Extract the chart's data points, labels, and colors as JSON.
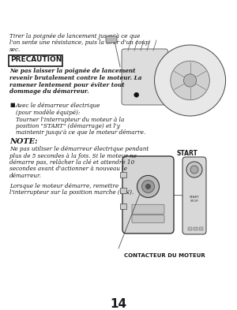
{
  "bg_color": "#ffffff",
  "page_number": "14",
  "top_text_lines": [
    "Tirer la poignée de lancement jusqu'à ce que",
    "l'on sente une résistance, puis la tirer d'un coup",
    "sec."
  ],
  "precaution_title": "PRECAUTION",
  "precaution_body_lines": [
    "Ne pas laisser la poignée de lancement",
    "revenir brutalement contre le moteur. La",
    "ramener lentement pour éviter tout",
    "dommage du démarreur."
  ],
  "bullet_title": "Avec le démarreur électrique",
  "bullet_subtitle": "(pour modèle équipé):",
  "bullet_body_lines": [
    "Tourner l'interrupteur du moteur à la",
    "position \"START\" (démarrage) et l'y",
    "maintenir jusqu'à ce que le moteur démarre."
  ],
  "note_title": "NOTE:",
  "note_body_lines": [
    "Ne pas utiliser le démarreur électrique pendant",
    "plus de 5 secondes à la fois. Si le moteur ne",
    "démarre pas, relâcher la clé et attendre 10",
    "secondes avant d'actionner à nouveau le",
    "démarreur."
  ],
  "bottom_text_lines": [
    "Lorsque le moteur démarre, remettre",
    "l'interrupteur sur la position marche (ON)."
  ],
  "caption_bottom": "CONTACTEUR DU MOTEUR",
  "start_label": "START",
  "text_color": "#1a1a1a",
  "font_size_body": 5.2,
  "font_size_precaution_title": 6.5,
  "font_size_note_title": 7.0,
  "font_size_page": 11.0
}
